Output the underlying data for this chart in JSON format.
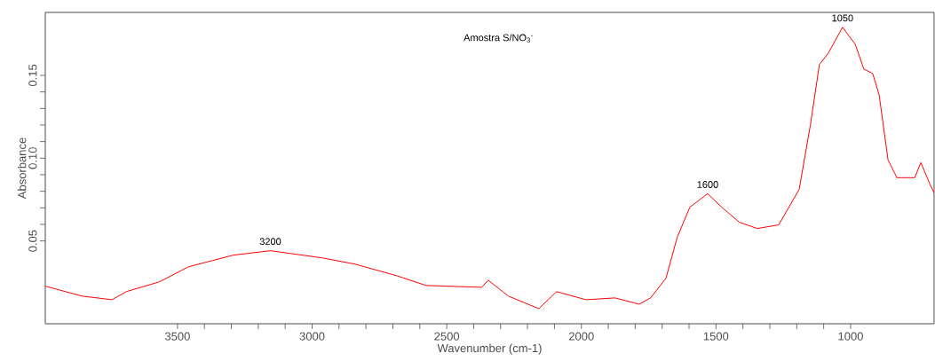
{
  "chart_data": {
    "type": "line",
    "title": "Amostra S/NO$_{3}$$^{-}$",
    "xlabel": "Wavenumber (cm-1)",
    "ylabel": "Absorbance",
    "xlim": [
      3991,
      690
    ],
    "ylim": [
      0,
      0.188
    ],
    "xticks": [
      3500,
      3000,
      2500,
      2000,
      1500,
      1000
    ],
    "yticks": [
      {
        "value": 0.05,
        "label": "0.05"
      },
      {
        "value": 0.1,
        "label": "0.10"
      },
      {
        "value": 0.15,
        "label": "0.15"
      }
    ],
    "series": [
      {
        "color": "#ff0000",
        "x": [
          3991,
          3855,
          3743,
          3690,
          3567,
          3459,
          3369,
          3294,
          3155,
          2964,
          2841,
          2686,
          2577,
          2370,
          2346,
          2271,
          2158,
          2092,
          1983,
          1875,
          1785,
          1743,
          1686,
          1644,
          1597,
          1531,
          1479,
          1413,
          1347,
          1267,
          1191,
          1149,
          1116,
          1083,
          1030,
          983,
          951,
          918,
          894,
          861,
          828,
          762,
          739,
          706,
          690
        ],
        "values": [
          0.0227,
          0.0167,
          0.0145,
          0.0194,
          0.0253,
          0.0344,
          0.0382,
          0.0414,
          0.0441,
          0.0398,
          0.036,
          0.029,
          0.0231,
          0.022,
          0.0263,
          0.0167,
          0.0091,
          0.0194,
          0.0145,
          0.0156,
          0.0118,
          0.0156,
          0.0274,
          0.0522,
          0.0704,
          0.0785,
          0.0704,
          0.0613,
          0.0575,
          0.0597,
          0.0812,
          0.1204,
          0.1565,
          0.1634,
          0.179,
          0.1688,
          0.1538,
          0.1511,
          0.1382,
          0.0989,
          0.0882,
          0.0882,
          0.0973,
          0.0844,
          0.079
        ]
      }
    ],
    "annotations": [
      {
        "text": "3200",
        "x": 3155,
        "y": 0.0441
      },
      {
        "text": "1600",
        "x": 1531,
        "y": 0.0785
      },
      {
        "text": "1050",
        "x": 1030,
        "y": 0.179
      }
    ]
  }
}
